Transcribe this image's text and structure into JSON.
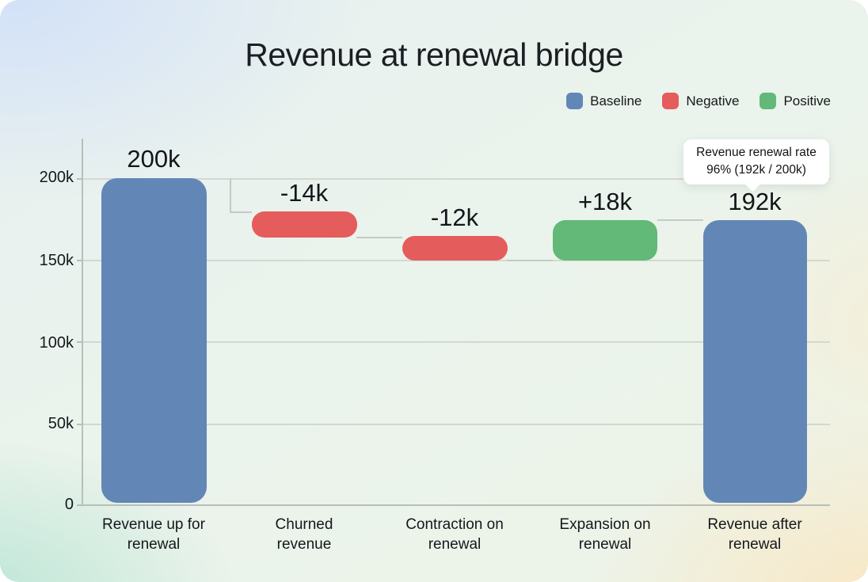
{
  "title": "Revenue at renewal bridge",
  "legend": {
    "items": [
      {
        "label": "Baseline",
        "color": "#6287b7"
      },
      {
        "label": "Negative",
        "color": "#e55c5c"
      },
      {
        "label": "Positive",
        "color": "#62b978"
      }
    ]
  },
  "tooltip": {
    "line1": "Revenue renewal rate",
    "line2": "96% (192k / 200k)"
  },
  "chart_data": {
    "type": "bar",
    "subtype": "waterfall",
    "title": "Revenue at renewal bridge",
    "categories": [
      "Revenue up for renewal",
      "Churned revenue",
      "Contraction on renewal",
      "Expansion on renewal",
      "Revenue after renewal"
    ],
    "values": [
      200000,
      -14000,
      -12000,
      18000,
      192000
    ],
    "value_labels": [
      "200k",
      "-14k",
      "-12k",
      "+18k",
      "192k"
    ],
    "segment_types": [
      "baseline",
      "negative",
      "negative",
      "positive",
      "baseline"
    ],
    "series_colors": {
      "baseline": "#6287b7",
      "negative": "#e55c5c",
      "positive": "#62b978"
    },
    "ylim": [
      0,
      200000
    ],
    "y_tick_labels": [
      "200k",
      "150k",
      "100k",
      "50k",
      "0"
    ],
    "x_tick_lines": [
      [
        "Revenue up for",
        "renewal"
      ],
      [
        "Churned",
        "revenue"
      ],
      [
        "Contraction on",
        "renewal"
      ],
      [
        "Expansion on",
        "renewal"
      ],
      [
        "Revenue after",
        "renewal"
      ]
    ],
    "grid": true,
    "legend_position": "top-right",
    "annotation": {
      "text": "Revenue renewal rate 96% (192k / 200k)",
      "target": "Revenue after renewal"
    }
  }
}
